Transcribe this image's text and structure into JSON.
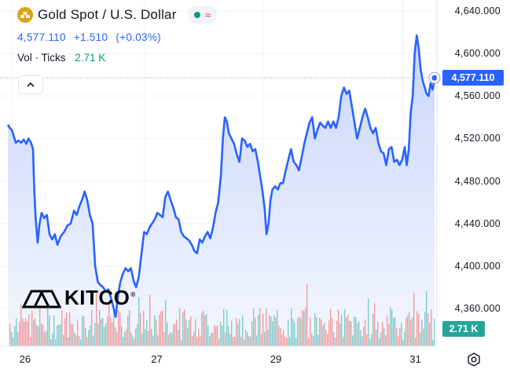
{
  "header": {
    "title": "Gold Spot / U.S. Dollar",
    "price": "4,577.110",
    "change": "+1.510",
    "change_pct": "(+0.03%)",
    "vol_label": "Vol · Ticks",
    "vol_value": "2.71 K",
    "status_icon": "market-open-dot",
    "wave_icon": "≈"
  },
  "axis": {
    "y_ticks": [
      "4,640.000",
      "4,600.000",
      "4,560.000",
      "4,520.000",
      "4,480.000",
      "4,440.000",
      "4,400.000",
      "4,360.000"
    ],
    "x_ticks": [
      "26",
      "27",
      "29",
      "31"
    ]
  },
  "tags": {
    "last_price": "4,577.110",
    "volume": "2.71 K"
  },
  "logo": {
    "text": "KITCO",
    "mark": "®"
  },
  "colors": {
    "line": "#2962ff",
    "area_top": "#c9d6fb",
    "area_bottom": "#f4f7ff",
    "vol_up": "#26a69a",
    "vol_down": "#ef5350",
    "price_tag": "#2962ff",
    "vol_tag": "#26a69a"
  },
  "chart_data": {
    "type": "area",
    "y_ticks": [
      4640,
      4600,
      4560,
      4520,
      4480,
      4440,
      4400,
      4360
    ],
    "ylim": [
      4345,
      4650
    ],
    "x_ticks": [
      {
        "label": "26",
        "t": 0.7
      },
      {
        "label": "27",
        "t": 20.6
      },
      {
        "label": "29",
        "t": 38.6
      },
      {
        "label": "31",
        "t": 59.7
      }
    ],
    "xlim": [
      0,
      64.5
    ],
    "last_price": 4577.11,
    "series": [
      {
        "points": [
          [
            0,
            4533
          ],
          [
            0.3,
            4530
          ],
          [
            0.6,
            4528
          ],
          [
            0.9,
            4522
          ],
          [
            1.2,
            4516
          ],
          [
            1.6,
            4518
          ],
          [
            2.0,
            4516
          ],
          [
            2.4,
            4519
          ],
          [
            2.8,
            4515
          ],
          [
            3.1,
            4520
          ],
          [
            3.5,
            4516
          ],
          [
            3.8,
            4510
          ],
          [
            4.0,
            4470
          ],
          [
            4.2,
            4445
          ],
          [
            4.5,
            4422
          ],
          [
            4.8,
            4440
          ],
          [
            5.1,
            4450
          ],
          [
            5.5,
            4445
          ],
          [
            5.9,
            4448
          ],
          [
            6.3,
            4430
          ],
          [
            6.7,
            4425
          ],
          [
            7.1,
            4430
          ],
          [
            7.5,
            4420
          ],
          [
            8.0,
            4428
          ],
          [
            8.5,
            4432
          ],
          [
            9.0,
            4438
          ],
          [
            9.5,
            4440
          ],
          [
            10.0,
            4452
          ],
          [
            10.4,
            4448
          ],
          [
            10.8,
            4456
          ],
          [
            11.2,
            4462
          ],
          [
            11.6,
            4470
          ],
          [
            12.0,
            4462
          ],
          [
            12.4,
            4448
          ],
          [
            12.8,
            4440
          ],
          [
            13.2,
            4400
          ],
          [
            13.6,
            4385
          ],
          [
            14.0,
            4382
          ],
          [
            14.4,
            4380
          ],
          [
            14.8,
            4376
          ],
          [
            15.2,
            4378
          ],
          [
            15.6,
            4370
          ],
          [
            16.0,
            4360
          ],
          [
            16.3,
            4352
          ],
          [
            16.6,
            4370
          ],
          [
            17.0,
            4385
          ],
          [
            17.4,
            4393
          ],
          [
            17.8,
            4398
          ],
          [
            18.2,
            4395
          ],
          [
            18.6,
            4398
          ],
          [
            19.0,
            4386
          ],
          [
            19.4,
            4380
          ],
          [
            19.8,
            4390
          ],
          [
            20.2,
            4412
          ],
          [
            20.6,
            4432
          ],
          [
            21.0,
            4430
          ],
          [
            21.4,
            4436
          ],
          [
            21.8,
            4440
          ],
          [
            22.2,
            4444
          ],
          [
            22.6,
            4450
          ],
          [
            23.0,
            4448
          ],
          [
            23.4,
            4446
          ],
          [
            23.8,
            4465
          ],
          [
            24.2,
            4470
          ],
          [
            24.6,
            4462
          ],
          [
            25.0,
            4455
          ],
          [
            25.4,
            4446
          ],
          [
            25.8,
            4444
          ],
          [
            26.2,
            4432
          ],
          [
            26.6,
            4428
          ],
          [
            27.0,
            4426
          ],
          [
            27.4,
            4424
          ],
          [
            27.8,
            4420
          ],
          [
            28.2,
            4414
          ],
          [
            28.6,
            4412
          ],
          [
            29.0,
            4425
          ],
          [
            29.4,
            4422
          ],
          [
            29.8,
            4428
          ],
          [
            30.2,
            4432
          ],
          [
            30.6,
            4426
          ],
          [
            31.0,
            4436
          ],
          [
            31.4,
            4450
          ],
          [
            31.8,
            4460
          ],
          [
            32.2,
            4485
          ],
          [
            32.5,
            4520
          ],
          [
            32.8,
            4540
          ],
          [
            33.1,
            4536
          ],
          [
            33.4,
            4525
          ],
          [
            33.8,
            4520
          ],
          [
            34.2,
            4515
          ],
          [
            34.6,
            4505
          ],
          [
            35.0,
            4498
          ],
          [
            35.4,
            4520
          ],
          [
            35.8,
            4518
          ],
          [
            36.2,
            4512
          ],
          [
            36.6,
            4515
          ],
          [
            37.0,
            4508
          ],
          [
            37.4,
            4510
          ],
          [
            37.8,
            4498
          ],
          [
            38.2,
            4482
          ],
          [
            38.5,
            4470
          ],
          [
            38.8,
            4455
          ],
          [
            39.1,
            4430
          ],
          [
            39.4,
            4440
          ],
          [
            39.7,
            4462
          ],
          [
            40.0,
            4472
          ],
          [
            40.4,
            4475
          ],
          [
            40.8,
            4472
          ],
          [
            41.2,
            4478
          ],
          [
            41.6,
            4478
          ],
          [
            42.0,
            4490
          ],
          [
            42.4,
            4500
          ],
          [
            42.8,
            4510
          ],
          [
            43.2,
            4498
          ],
          [
            43.6,
            4495
          ],
          [
            44.0,
            4490
          ],
          [
            44.4,
            4502
          ],
          [
            44.8,
            4515
          ],
          [
            45.2,
            4525
          ],
          [
            45.6,
            4535
          ],
          [
            46.0,
            4540
          ],
          [
            46.4,
            4520
          ],
          [
            46.8,
            4528
          ],
          [
            47.2,
            4535
          ],
          [
            47.6,
            4532
          ],
          [
            48.0,
            4530
          ],
          [
            48.4,
            4536
          ],
          [
            48.8,
            4530
          ],
          [
            49.2,
            4536
          ],
          [
            49.6,
            4530
          ],
          [
            50.0,
            4540
          ],
          [
            50.4,
            4560
          ],
          [
            50.8,
            4568
          ],
          [
            51.2,
            4562
          ],
          [
            51.6,
            4565
          ],
          [
            52.0,
            4550
          ],
          [
            52.4,
            4535
          ],
          [
            52.8,
            4520
          ],
          [
            53.2,
            4530
          ],
          [
            53.6,
            4540
          ],
          [
            54.0,
            4548
          ],
          [
            54.4,
            4540
          ],
          [
            54.8,
            4530
          ],
          [
            55.2,
            4525
          ],
          [
            55.6,
            4530
          ],
          [
            56.0,
            4516
          ],
          [
            56.4,
            4508
          ],
          [
            56.8,
            4506
          ],
          [
            57.2,
            4495
          ],
          [
            57.6,
            4510
          ],
          [
            58.0,
            4512
          ],
          [
            58.4,
            4498
          ],
          [
            58.8,
            4500
          ],
          [
            59.2,
            4495
          ],
          [
            59.6,
            4500
          ],
          [
            60.0,
            4512
          ],
          [
            60.3,
            4495
          ],
          [
            60.6,
            4510
          ],
          [
            60.9,
            4545
          ],
          [
            61.2,
            4560
          ],
          [
            61.5,
            4600
          ],
          [
            61.8,
            4617
          ],
          [
            62.1,
            4605
          ],
          [
            62.4,
            4585
          ],
          [
            62.7,
            4575
          ],
          [
            63.0,
            4568
          ],
          [
            63.3,
            4562
          ],
          [
            63.6,
            4560
          ],
          [
            63.9,
            4572
          ],
          [
            64.2,
            4566
          ],
          [
            64.5,
            4577
          ]
        ]
      }
    ],
    "volume": {
      "max_display": "2.71 K"
    }
  }
}
